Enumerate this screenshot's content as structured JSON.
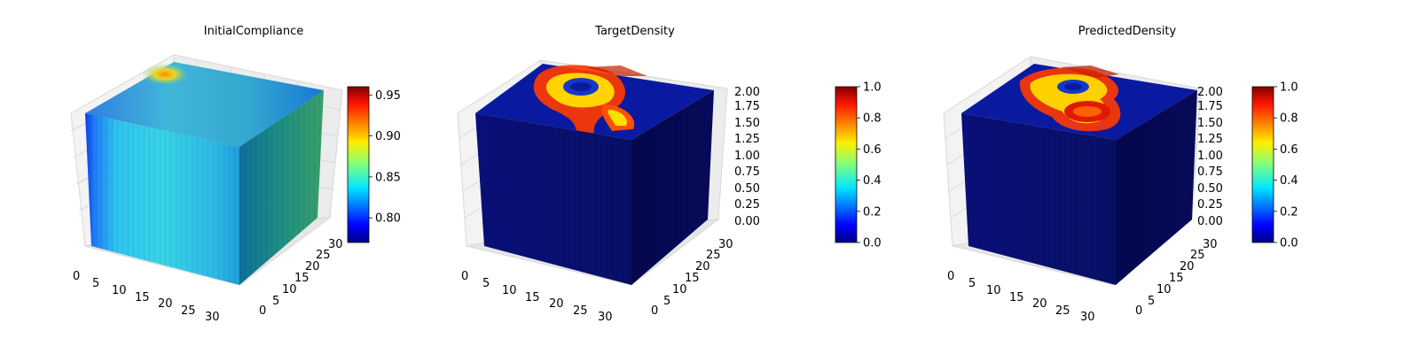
{
  "chart_data": [
    {
      "type": "voxel-3d",
      "title": "InitialCompliance",
      "x_ticks": [
        "0",
        "5",
        "10",
        "15",
        "20",
        "25",
        "30"
      ],
      "y_ticks": [
        "0",
        "5",
        "10",
        "15",
        "20",
        "25",
        "30"
      ],
      "z_ticks": [],
      "colorbar": {
        "colormap": "jet",
        "range": [
          0.77,
          0.96
        ],
        "ticks": [
          "0.80",
          "0.85",
          "0.90",
          "0.95"
        ],
        "tick_values": [
          0.8,
          0.85,
          0.9,
          0.95
        ]
      },
      "appearance": "mostly cyan-blue cube; blue band on left front edge; yellow-orange hot spot at top back-left corner; green toward right side"
    },
    {
      "type": "voxel-3d",
      "title": "TargetDensity",
      "x_ticks": [
        "0",
        "5",
        "10",
        "15",
        "20",
        "25",
        "30"
      ],
      "y_ticks": [
        "0",
        "5",
        "10",
        "15",
        "20",
        "25",
        "30"
      ],
      "z_ticks": [
        "0.00",
        "0.25",
        "0.50",
        "0.75",
        "1.00",
        "1.25",
        "1.50",
        "1.75",
        "2.00"
      ],
      "colorbar": {
        "colormap": "jet",
        "range": [
          0.0,
          1.0
        ],
        "ticks": [
          "0.0",
          "0.2",
          "0.4",
          "0.6",
          "0.8",
          "1.0"
        ],
        "tick_values": [
          0.0,
          0.2,
          0.4,
          0.6,
          0.8,
          1.0
        ]
      },
      "appearance": "dark blue cube; red/yellow material ring and stem pattern on top face near back-left"
    },
    {
      "type": "voxel-3d",
      "title": "PredictedDensity",
      "x_ticks": [
        "0",
        "5",
        "10",
        "15",
        "20",
        "25",
        "30"
      ],
      "y_ticks": [
        "0",
        "5",
        "10",
        "15",
        "20",
        "25",
        "30"
      ],
      "z_ticks": [
        "0.00",
        "0.25",
        "0.50",
        "0.75",
        "1.00",
        "1.25",
        "1.50",
        "1.75",
        "2.00"
      ],
      "colorbar": {
        "colormap": "jet",
        "range": [
          0.0,
          1.0
        ],
        "ticks": [
          "0.0",
          "0.2",
          "0.4",
          "0.6",
          "0.8",
          "1.0"
        ],
        "tick_values": [
          0.0,
          0.2,
          0.4,
          0.6,
          0.8,
          1.0
        ]
      },
      "appearance": "dark blue cube; red/yellow blob pattern on top face near back"
    }
  ],
  "colors": {
    "jet_dark_blue": "#00007f",
    "jet_blue": "#0000ff",
    "jet_cyan": "#00ffff",
    "jet_yellow": "#ffff00",
    "jet_red": "#ff0000",
    "jet_dark_red": "#7f0000",
    "pane": "#f2f2f2",
    "grid": "#dcdcdc"
  }
}
